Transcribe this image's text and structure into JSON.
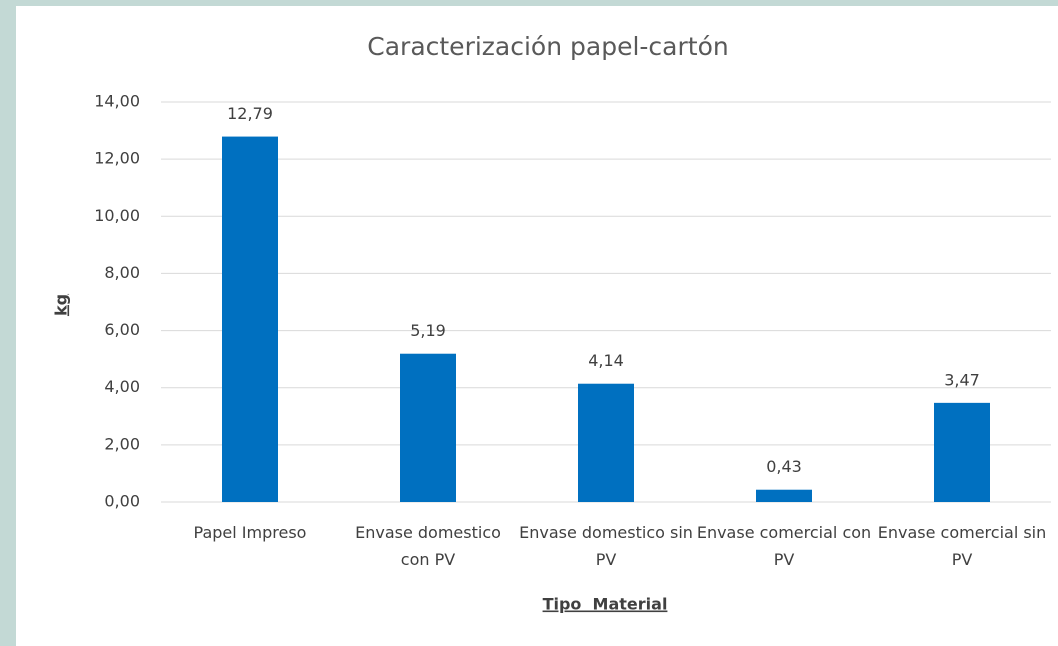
{
  "chart_data": {
    "type": "bar",
    "title": "Caracterización papel-cartón",
    "y_label": "kg",
    "x_label": "Tipo  Material",
    "categories": [
      "Papel Impreso",
      "Envase domestico con PV",
      "Envase domestico sin PV",
      "Envase comercial con PV",
      "Envase comercial sin PV"
    ],
    "values": [
      12.79,
      5.19,
      4.14,
      0.43,
      3.47
    ],
    "value_labels": [
      "12,79",
      "5,19",
      "4,14",
      "0,43",
      "3,47"
    ],
    "color": "#0070c0",
    "ylim": [
      0,
      14
    ],
    "yticks": [
      {
        "value": 0,
        "label": "0,00"
      },
      {
        "value": 2,
        "label": "2,00"
      },
      {
        "value": 4,
        "label": "4,00"
      },
      {
        "value": 6,
        "label": "6,00"
      },
      {
        "value": 8,
        "label": "8,00"
      },
      {
        "value": 10,
        "label": "10,00"
      },
      {
        "value": 12,
        "label": "12,00"
      },
      {
        "value": 14,
        "label": "14,00"
      }
    ],
    "grid": true
  }
}
